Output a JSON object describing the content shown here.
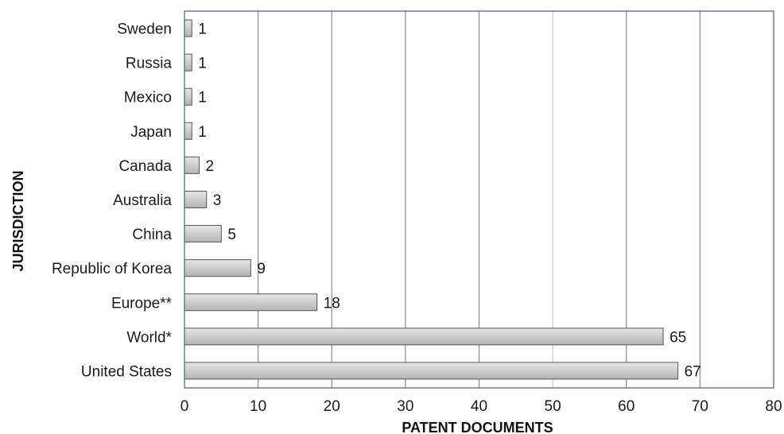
{
  "chart_data": {
    "type": "bar",
    "orientation": "horizontal",
    "categories": [
      "Sweden",
      "Russia",
      "Mexico",
      "Japan",
      "Canada",
      "Australia",
      "China",
      "Republic of Korea",
      "Europe**",
      "World*",
      "United States"
    ],
    "values": [
      1,
      1,
      1,
      1,
      2,
      3,
      5,
      9,
      18,
      65,
      67
    ],
    "data_labels": [
      "1",
      "1",
      "1",
      "1",
      "2",
      "3",
      "5",
      "9",
      "18",
      "65",
      "67"
    ],
    "xlabel": "PATENT DOCUMENTS",
    "ylabel": "JURISDICTION",
    "xlim": [
      0,
      80
    ],
    "xticks": [
      0,
      10,
      20,
      30,
      40,
      50,
      60,
      70,
      80
    ],
    "xtick_labels": [
      "0",
      "10",
      "20",
      "30",
      "40",
      "50",
      "60",
      "70",
      "80"
    ],
    "grid": "vertical",
    "legend": "none"
  },
  "colors": {
    "bar_fill_top": "#e6e6e6",
    "bar_fill_bottom": "#b4b4b4",
    "bar_stroke": "#555555",
    "plot_border": "#4a5a8a",
    "grid_dark": "#8c8c8c",
    "grid_light": "#c8c8c8"
  }
}
